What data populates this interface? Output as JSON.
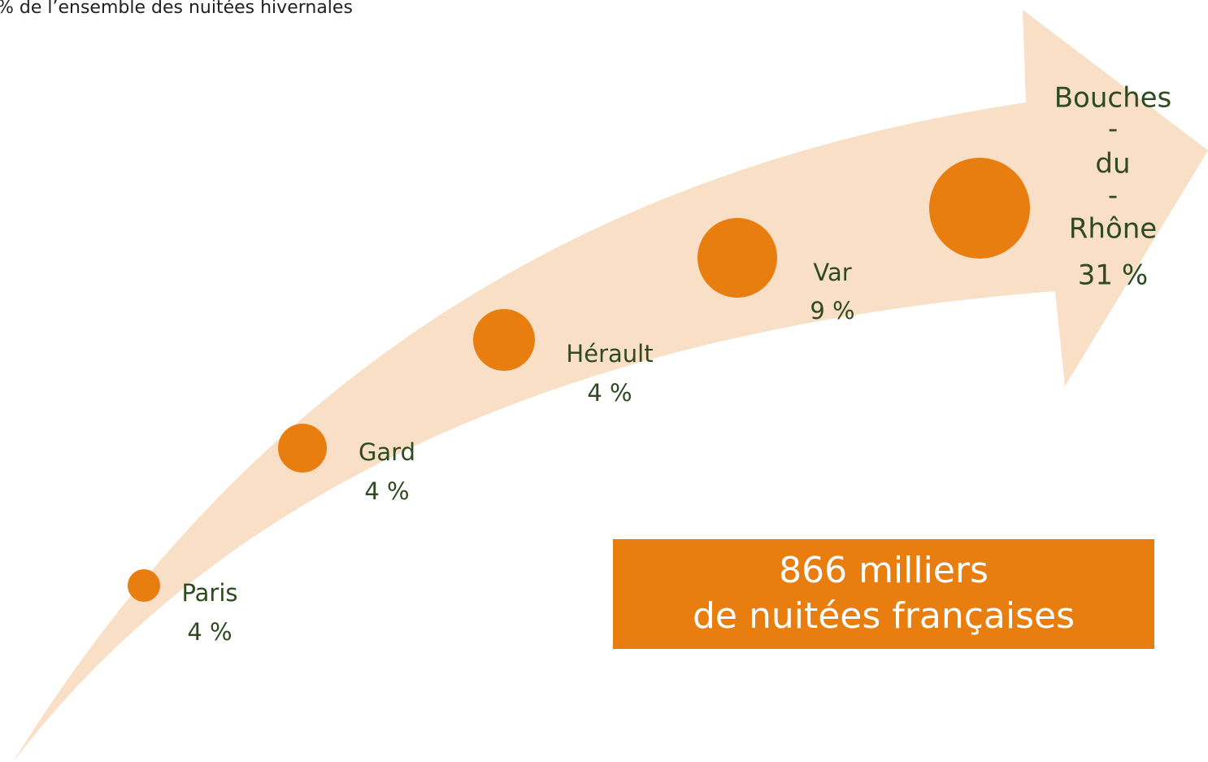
{
  "subtitle": "% de l’ensemble des nuitées hivernales",
  "items": [
    {
      "name": "Paris",
      "share": "4 %"
    },
    {
      "name": "Gard",
      "share": "4 %"
    },
    {
      "name": "Hérault",
      "share": "4 %"
    },
    {
      "name": "Var",
      "share": "9 %"
    },
    {
      "name_lines": [
        "Bouches",
        "-",
        "du",
        "-",
        "Rhône"
      ],
      "share": "31 %"
    }
  ],
  "total": {
    "line1": "866 milliers",
    "line2": "de nuitées françaises"
  }
}
